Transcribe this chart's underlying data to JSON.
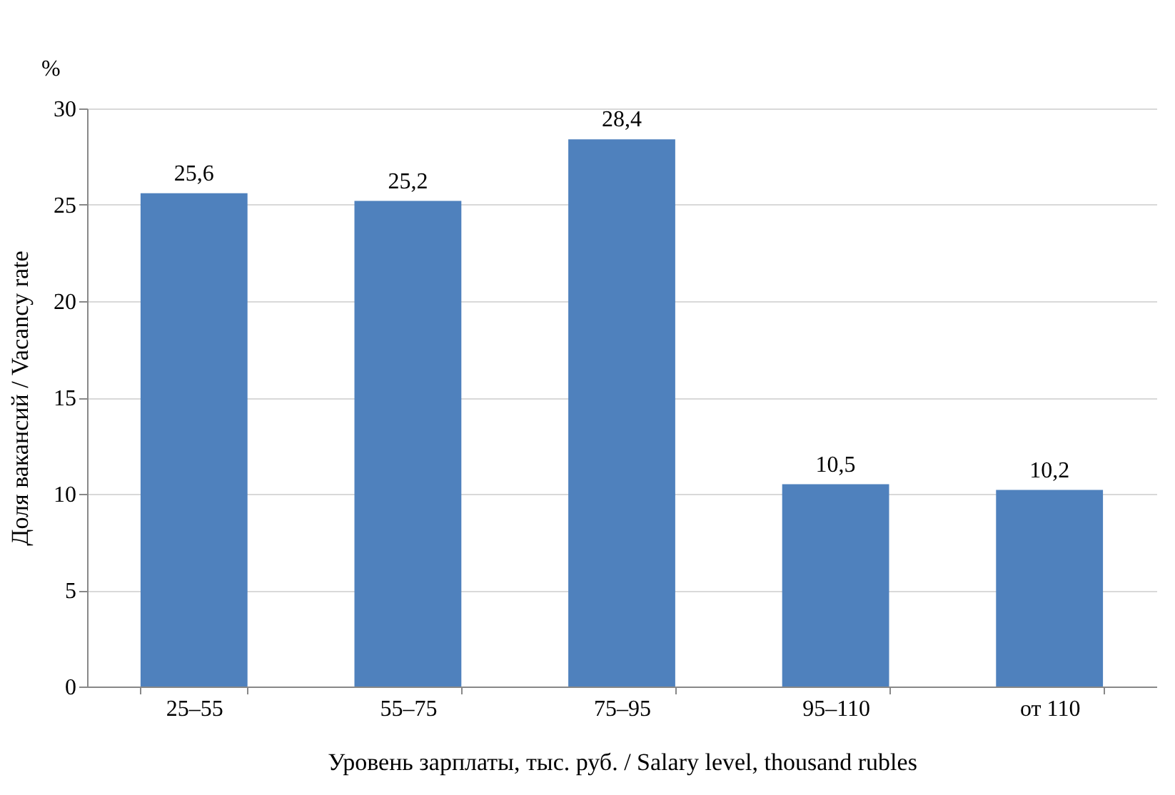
{
  "chart_data": {
    "type": "bar",
    "xlabel": "Уровень зарплаты, тыс. руб. / Salary level, thousand rubles",
    "ylabel": "Доля вакансий / Vacancy rate",
    "annotations": [
      "%"
    ],
    "categories": [
      "25–55",
      "55–75",
      "75–95",
      "95–110",
      "от 110"
    ],
    "values": [
      25.6,
      25.2,
      28.4,
      10.5,
      10.2
    ],
    "value_labels": [
      "25,6",
      "25,2",
      "28,4",
      "10,5",
      "10,2"
    ],
    "color": "#4f81bd",
    "ylim": [
      0,
      30
    ],
    "yticks": [
      0,
      5,
      10,
      15,
      20,
      25,
      30
    ],
    "grid": "y"
  }
}
